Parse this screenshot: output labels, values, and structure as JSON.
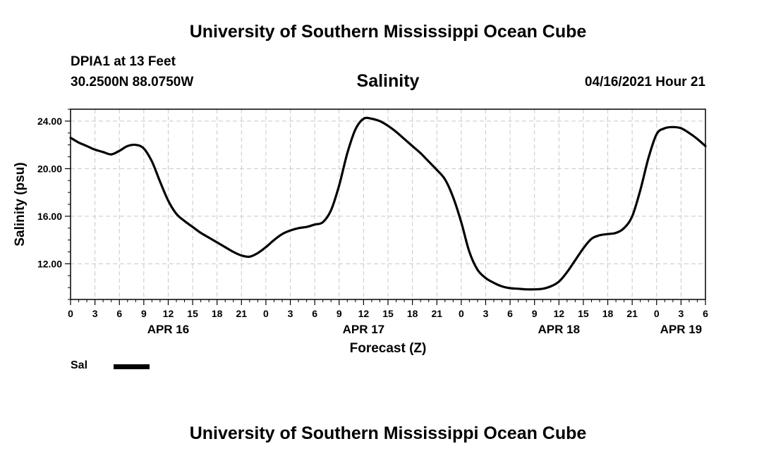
{
  "header": {
    "title": "University of Southern Mississippi Ocean Cube",
    "station": "DPIA1 at 13 Feet",
    "coordinates": "30.2500N  88.0750W",
    "variable": "Salinity",
    "issued": "04/16/2021 Hour 21"
  },
  "footer": {
    "title": "University of Southern Mississippi Ocean Cube"
  },
  "legend": {
    "label": "Sal",
    "color": "#000000"
  },
  "chart_data": {
    "type": "line",
    "title": "Salinity",
    "xlabel": "Forecast (Z)",
    "ylabel": "Salinity (psu)",
    "x_unit": "hours since APR 16 00Z",
    "xlim": [
      0,
      78
    ],
    "ylim": [
      9.0,
      25.0
    ],
    "y_ticks": [
      12,
      16,
      20,
      24
    ],
    "y_tick_labels": [
      "12.00",
      "16.00",
      "20.00",
      "24.00"
    ],
    "x_tick_labels": [
      "0",
      "3",
      "6",
      "9",
      "12",
      "15",
      "18",
      "21",
      "0",
      "3",
      "6",
      "9",
      "12",
      "15",
      "18",
      "21",
      "0",
      "3",
      "6",
      "9",
      "12",
      "15",
      "18",
      "21",
      "0",
      "3",
      "6"
    ],
    "day_labels": [
      {
        "label": "APR 16",
        "hour": 12
      },
      {
        "label": "APR 17",
        "hour": 36
      },
      {
        "label": "APR 18",
        "hour": 60
      },
      {
        "label": "APR 19",
        "hour": 75
      }
    ],
    "grid": true,
    "series": [
      {
        "name": "Sal",
        "color": "#000000",
        "x": [
          0,
          1,
          2,
          3,
          4,
          5,
          6,
          7,
          8,
          9,
          10,
          11,
          12,
          13,
          14,
          15,
          16,
          17,
          18,
          19,
          20,
          21,
          22,
          23,
          24,
          25,
          26,
          27,
          28,
          29,
          30,
          31,
          32,
          33,
          34,
          35,
          36,
          37,
          38,
          39,
          40,
          41,
          42,
          43,
          44,
          45,
          46,
          47,
          48,
          49,
          50,
          51,
          52,
          53,
          54,
          55,
          56,
          57,
          58,
          59,
          60,
          61,
          62,
          63,
          64,
          65,
          66,
          67,
          68,
          69,
          70,
          71,
          72,
          73,
          74,
          75,
          76,
          77,
          78
        ],
        "y": [
          22.6,
          22.2,
          21.9,
          21.6,
          21.4,
          21.2,
          21.5,
          21.9,
          22.0,
          21.7,
          20.6,
          18.9,
          17.3,
          16.2,
          15.6,
          15.1,
          14.6,
          14.2,
          13.8,
          13.4,
          13.0,
          12.7,
          12.6,
          12.9,
          13.4,
          14.0,
          14.5,
          14.8,
          15.0,
          15.1,
          15.3,
          15.5,
          16.5,
          18.6,
          21.3,
          23.3,
          24.2,
          24.2,
          24.0,
          23.6,
          23.1,
          22.5,
          21.9,
          21.3,
          20.6,
          19.9,
          19.1,
          17.6,
          15.5,
          13.0,
          11.5,
          10.8,
          10.4,
          10.1,
          9.95,
          9.9,
          9.85,
          9.85,
          9.9,
          10.1,
          10.5,
          11.3,
          12.3,
          13.3,
          14.1,
          14.4,
          14.5,
          14.6,
          15.0,
          16.0,
          18.2,
          20.9,
          22.9,
          23.4,
          23.5,
          23.4,
          23.0,
          22.5,
          21.9
        ]
      }
    ]
  }
}
